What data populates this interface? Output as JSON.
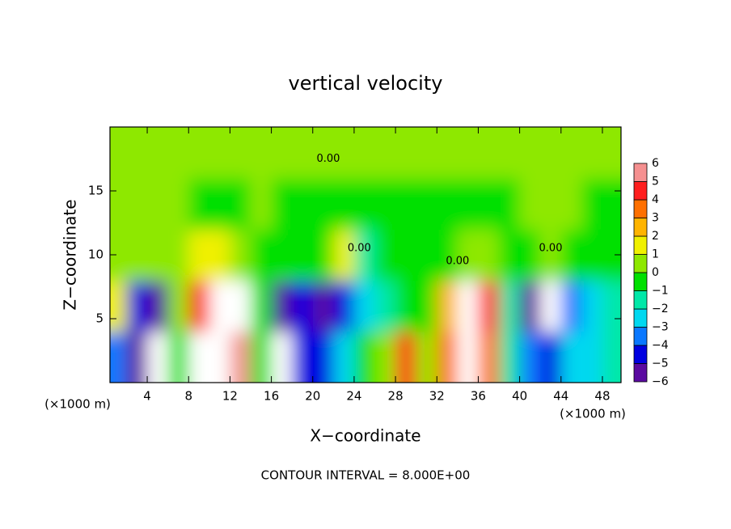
{
  "chart_data": {
    "type": "contour",
    "title": "vertical velocity",
    "x_label": "X−coordinate",
    "y_label": "Z−coordinate",
    "x_unit": "(×1000 m)",
    "footer": "CONTOUR INTERVAL = 8.000E+00",
    "contour_label": "0.00",
    "xlim": [
      0.4,
      49.8
    ],
    "ylim": [
      0,
      20
    ],
    "xticks": [
      4,
      8,
      12,
      16,
      20,
      24,
      28,
      32,
      36,
      40,
      44,
      48
    ],
    "yticks": [
      5,
      10,
      15
    ],
    "x": [
      1,
      3,
      5,
      7,
      9,
      11,
      13,
      15,
      17,
      19,
      21,
      23,
      25,
      27,
      29,
      31,
      33,
      35,
      37,
      39,
      41,
      43,
      45,
      47,
      49
    ],
    "y": [
      2,
      6,
      10,
      14,
      18
    ],
    "z": [
      [
        -3,
        -5,
        -7,
        0,
        7,
        8,
        6,
        0,
        -7,
        -4,
        -4,
        -2,
        -0.5,
        0.5,
        5,
        1,
        4,
        7,
        4,
        -1,
        -3,
        -4,
        -2.5,
        -2.5,
        -1
      ],
      [
        2,
        -4,
        -5,
        1,
        5,
        8,
        7,
        0,
        -5,
        -4,
        -5,
        -4,
        -2,
        -1,
        0,
        0,
        3,
        7,
        5,
        -1,
        -5,
        -7,
        -3,
        -2,
        -1
      ],
      [
        0.5,
        1,
        1,
        0.5,
        1.5,
        2,
        1,
        -0.5,
        0,
        0,
        0,
        2,
        -1,
        -0.5,
        0,
        -0.5,
        0,
        1,
        0.5,
        -0.5,
        0,
        0.5,
        0,
        0,
        0
      ],
      [
        0.5,
        0.8,
        0.8,
        0.3,
        0,
        0,
        0,
        0.3,
        0,
        0,
        0,
        -0.3,
        -0.3,
        0,
        0,
        0,
        0,
        0,
        0,
        0,
        0.5,
        0.8,
        0.3,
        0,
        0
      ],
      [
        0.2,
        0.2,
        0.2,
        0.2,
        0.2,
        0.2,
        0.2,
        0.2,
        0.2,
        0.2,
        0.2,
        0.2,
        0.2,
        0.2,
        0.2,
        0.2,
        0.2,
        0.2,
        0.2,
        0.2,
        0.2,
        0.2,
        0.2,
        0.2,
        0.2
      ]
    ],
    "colorbar_ticks": [
      {
        "value": -6,
        "label": "−6"
      },
      {
        "value": -5,
        "label": "−5"
      },
      {
        "value": -4,
        "label": "−4"
      },
      {
        "value": -3,
        "label": "−3"
      },
      {
        "value": -2,
        "label": "−2"
      },
      {
        "value": -1,
        "label": "−1"
      },
      0,
      1,
      2,
      3,
      4,
      5,
      6
    ],
    "colors": [
      "#5a0aa0",
      "#0000e0",
      "#0a78ff",
      "#00d8f0",
      "#00e8a8",
      "#00e000",
      "#8ee800",
      "#f0f000",
      "#ffb400",
      "#ff7000",
      "#ff1e1e",
      "#f59090"
    ],
    "out_of_range_color": "#ffffff"
  }
}
